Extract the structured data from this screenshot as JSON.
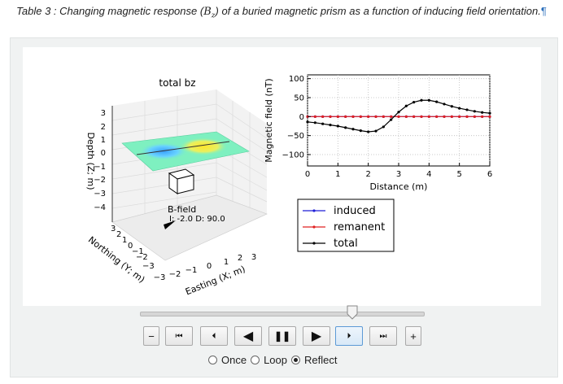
{
  "caption": {
    "text": "Table 3 : Changing magnetic response (",
    "math": "B",
    "math_sub": "z",
    "text_after": ") of a buried magnetic prism as a function of inducing field orientation.",
    "pilcrow": "¶"
  },
  "scene3d": {
    "title": "total bz",
    "z_axis_label": "Depth (Z; m)",
    "z_ticks": [
      "3",
      "2",
      "1",
      "0",
      "−1",
      "−2",
      "−3",
      "−4"
    ],
    "x_axis_label": "Easting (X; m)",
    "x_ticks": [
      "−3",
      "−2",
      "−1",
      "0",
      "1",
      "2",
      "3"
    ],
    "y_axis_label": "Northing (Y; m)",
    "y_ticks": [
      "3",
      "2",
      "1",
      "0",
      "−1",
      "−2",
      "−3"
    ],
    "bfield_label": "B-field",
    "bfield_params": "I: -2.0 D: 90.0"
  },
  "chart_data": {
    "type": "line",
    "xlabel": "Distance (m)",
    "ylabel": "Magnetic field (nT)",
    "xlim": [
      0,
      6
    ],
    "ylim": [
      -130,
      110
    ],
    "x_ticks": [
      0,
      1,
      2,
      3,
      4,
      5,
      6
    ],
    "y_ticks": [
      100,
      50,
      0,
      -50,
      -100
    ],
    "y_tick_labels": [
      "100",
      "50",
      "0",
      "−50",
      "−100"
    ],
    "grid": true,
    "legend_position": "below-center",
    "series": [
      {
        "name": "induced",
        "color": "#1f1fd8",
        "x": [
          0,
          0.25,
          0.5,
          0.75,
          1,
          1.25,
          1.5,
          1.75,
          2,
          2.25,
          2.5,
          2.75,
          3,
          3.25,
          3.5,
          3.75,
          4,
          4.25,
          4.5,
          4.75,
          5,
          5.25,
          5.5,
          5.75,
          6
        ],
        "values": [
          0,
          0,
          0,
          0,
          0,
          0,
          0,
          0,
          0,
          0,
          0,
          0,
          0,
          0,
          0,
          0,
          0,
          0,
          0,
          0,
          0,
          0,
          0,
          0,
          0
        ]
      },
      {
        "name": "remanent",
        "color": "#e02020",
        "x": [
          0,
          0.25,
          0.5,
          0.75,
          1,
          1.25,
          1.5,
          1.75,
          2,
          2.25,
          2.5,
          2.75,
          3,
          3.25,
          3.5,
          3.75,
          4,
          4.25,
          4.5,
          4.75,
          5,
          5.25,
          5.5,
          5.75,
          6
        ],
        "values": [
          0,
          0,
          0,
          0,
          0,
          0,
          0,
          0,
          0,
          0,
          0,
          0,
          0,
          0,
          0,
          0,
          0,
          0,
          0,
          0,
          0,
          0,
          0,
          0,
          0
        ]
      },
      {
        "name": "total",
        "color": "#000000",
        "x": [
          0,
          0.25,
          0.5,
          0.75,
          1,
          1.25,
          1.5,
          1.75,
          2,
          2.25,
          2.5,
          2.75,
          3,
          3.25,
          3.5,
          3.75,
          4,
          4.25,
          4.5,
          4.75,
          5,
          5.25,
          5.5,
          5.75,
          6
        ],
        "values": [
          -14,
          -16,
          -19,
          -22,
          -25,
          -29,
          -33,
          -37,
          -40,
          -38,
          -27,
          -8,
          12,
          28,
          38,
          43,
          43,
          39,
          33,
          27,
          22,
          18,
          14,
          11,
          9
        ]
      }
    ]
  },
  "controls": {
    "slider_value": 0.75,
    "buttons": [
      {
        "name": "decrease-speed-button",
        "label": "−"
      },
      {
        "name": "first-frame-button",
        "label": "⏮"
      },
      {
        "name": "step-back-button",
        "label": "⏴"
      },
      {
        "name": "play-reverse-button",
        "label": "◀"
      },
      {
        "name": "pause-button",
        "label": "❚❚"
      },
      {
        "name": "play-button",
        "label": "▶"
      },
      {
        "name": "step-forward-button",
        "label": "⏵"
      },
      {
        "name": "last-frame-button",
        "label": "⏭"
      },
      {
        "name": "increase-speed-button",
        "label": "+"
      }
    ],
    "radio_options": [
      {
        "label": "Once",
        "checked": false
      },
      {
        "label": "Loop",
        "checked": false
      },
      {
        "label": "Reflect",
        "checked": true
      }
    ]
  }
}
